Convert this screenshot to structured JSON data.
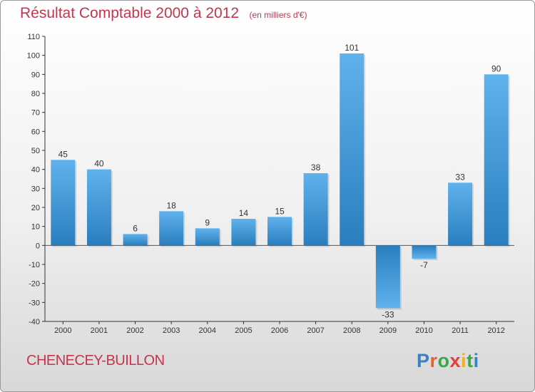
{
  "header": {
    "title": "Résultat Comptable 2000 à 2012",
    "subtitle": "(en milliers d'€)"
  },
  "commune_name": "CHENECEY-BUILLON",
  "logo": {
    "text": "Proxiti",
    "letter_colors": [
      "#3b7fc4",
      "#e8622c",
      "#3aa84a",
      "#e23e3e",
      "#f2b01e",
      "#3aa84a",
      "#3b7fc4"
    ]
  },
  "colors": {
    "bar_light": "#5fb2ec",
    "bar_dark": "#2a7ebe",
    "title": "#c4354e"
  },
  "chart_data": {
    "type": "bar",
    "categories": [
      "2000",
      "2001",
      "2002",
      "2003",
      "2004",
      "2005",
      "2006",
      "2007",
      "2008",
      "2009",
      "2010",
      "2011",
      "2012"
    ],
    "values": [
      45,
      40,
      6,
      18,
      9,
      14,
      15,
      38,
      101,
      -33,
      -7,
      33,
      90
    ],
    "value_labels": [
      "45",
      "40",
      "6",
      "18",
      "9",
      "14",
      "15",
      "38",
      "101",
      "-33",
      "-7",
      "33",
      "90"
    ],
    "title": "Résultat Comptable 2000 à 2012",
    "subtitle": "(en milliers d'€)",
    "ylim": [
      -40,
      110
    ],
    "yticks": [
      -40,
      -30,
      -20,
      -10,
      0,
      10,
      20,
      30,
      40,
      50,
      60,
      70,
      80,
      90,
      100,
      110
    ],
    "grid": false,
    "legend": "none"
  }
}
